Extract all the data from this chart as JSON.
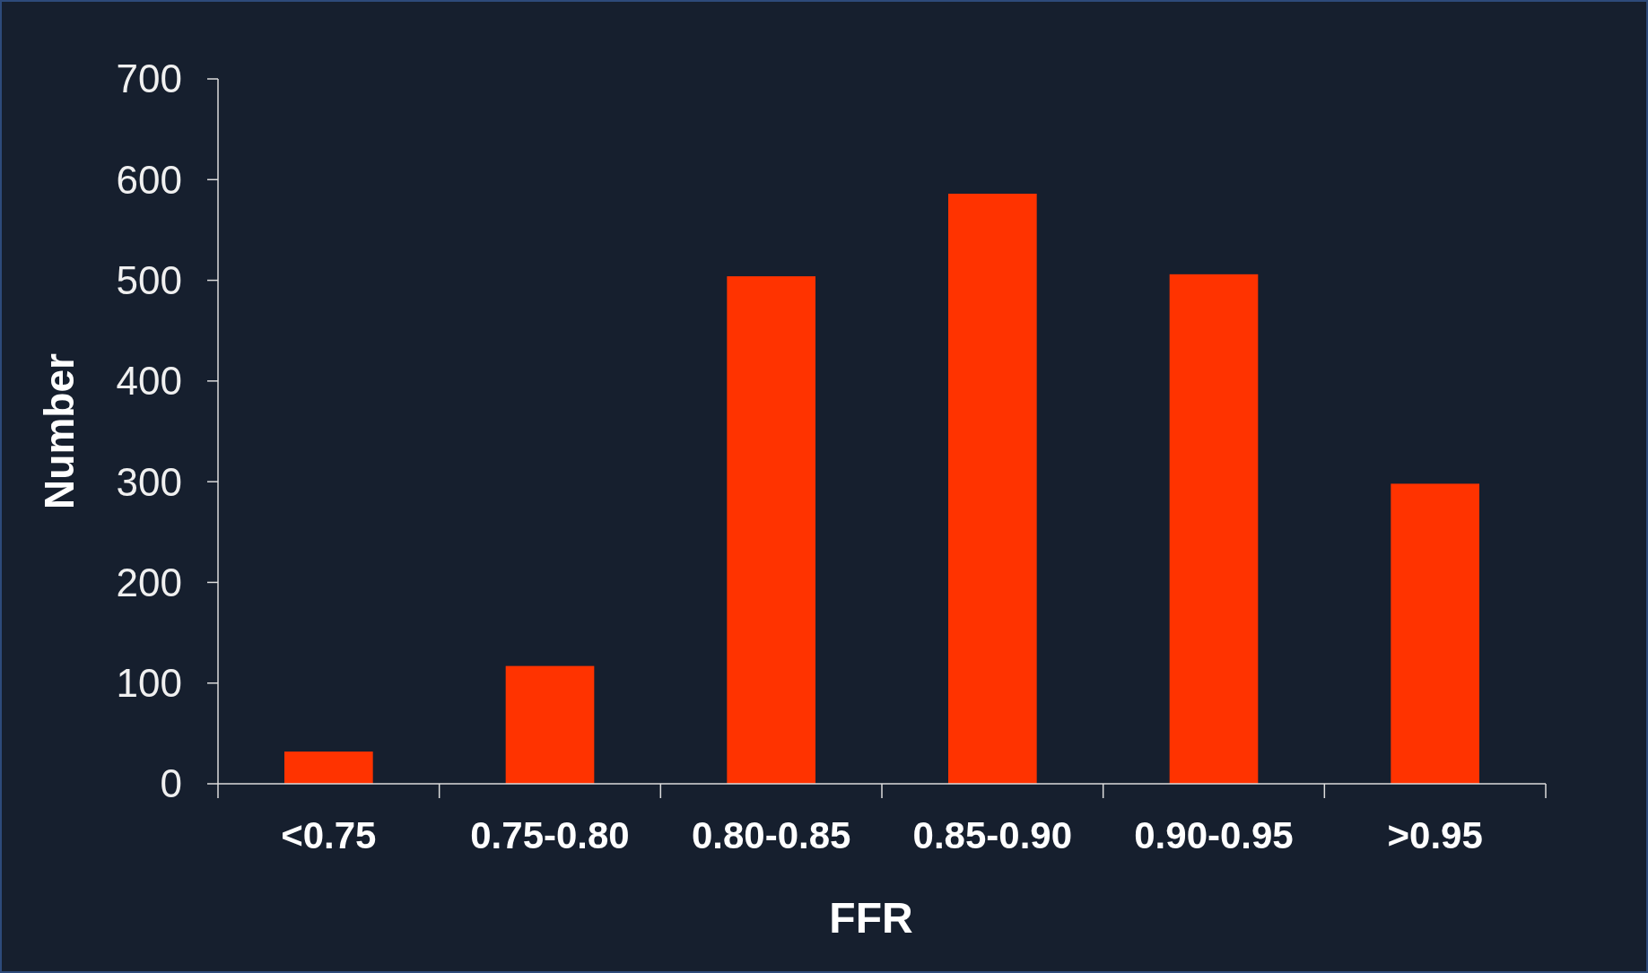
{
  "chart_data": {
    "type": "bar",
    "xlabel": "FFR",
    "ylabel": "Number",
    "categories": [
      "<0.75",
      "0.75-0.80",
      "0.80-0.85",
      "0.85-0.90",
      "0.90-0.95",
      ">0.95"
    ],
    "values": [
      32,
      117,
      504,
      586,
      506,
      298
    ],
    "color": "#ff3300",
    "ylim": [
      0,
      700
    ],
    "yticks": [
      0,
      100,
      200,
      300,
      400,
      500,
      600,
      700
    ]
  }
}
